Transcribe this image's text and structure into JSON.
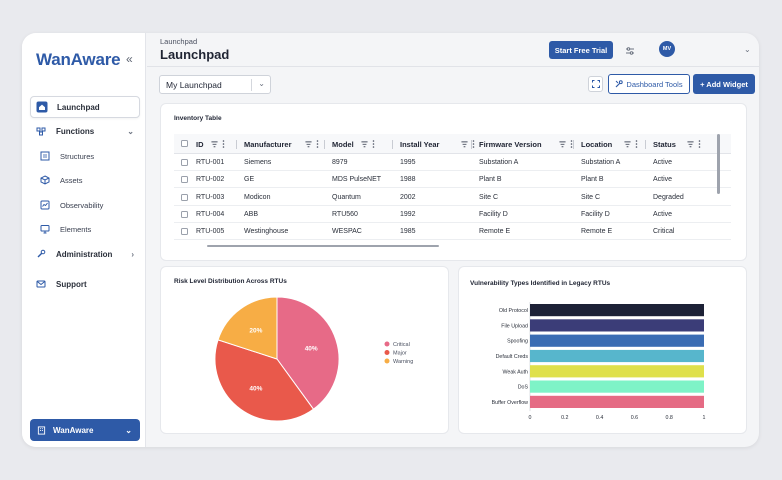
{
  "sidebar": {
    "logo": "WanAware",
    "items": [
      {
        "label": "Launchpad"
      },
      {
        "label": "Functions"
      },
      {
        "label": "Structures"
      },
      {
        "label": "Assets"
      },
      {
        "label": "Observability"
      },
      {
        "label": "Elements"
      },
      {
        "label": "Administration"
      },
      {
        "label": "Support"
      }
    ],
    "org": "WanAware"
  },
  "header": {
    "breadcrumb": "Launchpad",
    "title": "Launchpad",
    "trial_button": "Start Free Trial",
    "avatar": "MV"
  },
  "toolbar": {
    "launchpad_select": "My Launchpad",
    "dashboard_tools": "Dashboard Tools",
    "add_widget": "+ Add Widget"
  },
  "inventory": {
    "title": "Inventory Table",
    "columns": [
      "ID",
      "Manufacturer",
      "Model",
      "Install Year",
      "Firmware Version",
      "Location",
      "Status"
    ],
    "rows": [
      [
        "RTU-001",
        "Siemens",
        "8979",
        "1995",
        "Substation A",
        "Substation A",
        "Active"
      ],
      [
        "RTU-002",
        "GE",
        "MDS PulseNET",
        "1988",
        "Plant B",
        "Plant B",
        "Active"
      ],
      [
        "RTU-003",
        "Modicon",
        "Quantum",
        "2002",
        "Site C",
        "Site C",
        "Degraded"
      ],
      [
        "RTU-004",
        "ABB",
        "RTU560",
        "1992",
        "Facility D",
        "Facility D",
        "Active"
      ],
      [
        "RTU-005",
        "Westinghouse",
        "WESPAC",
        "1985",
        "Remote E",
        "Remote E",
        "Critical"
      ]
    ]
  },
  "colors": {
    "accent": "#2e5aa7",
    "critical": "#e76a87",
    "major": "#e9594b",
    "warning": "#f7ad45"
  },
  "pie_chart": {
    "chart_data": {
      "type": "pie",
      "title": "Risk Level Distribution Across RTUs",
      "categories": [
        "Critical",
        "Major",
        "Warning"
      ],
      "values": [
        40,
        40,
        20
      ],
      "labels": [
        "40%",
        "40%",
        "20%"
      ],
      "legend": "right"
    }
  },
  "bar_chart": {
    "chart_data": {
      "type": "bar",
      "orientation": "horizontal",
      "title": "Vulnerability Types Identified in Legacy RTUs",
      "categories": [
        "Old Protocol",
        "File Upload",
        "Spoofing",
        "Default Creds",
        "Weak Auth",
        "DoS",
        "Buffer Overflow"
      ],
      "values": [
        1,
        1,
        1,
        1,
        1,
        1,
        1
      ],
      "colors": [
        "#1d2136",
        "#3b3d78",
        "#3a6cb3",
        "#57b6cc",
        "#dfe04b",
        "#7ef3c7",
        "#e56b84"
      ],
      "xlim": [
        0,
        1
      ],
      "xticks": [
        "0",
        "0.2",
        "0.4",
        "0.6",
        "0.8",
        "1"
      ]
    }
  }
}
